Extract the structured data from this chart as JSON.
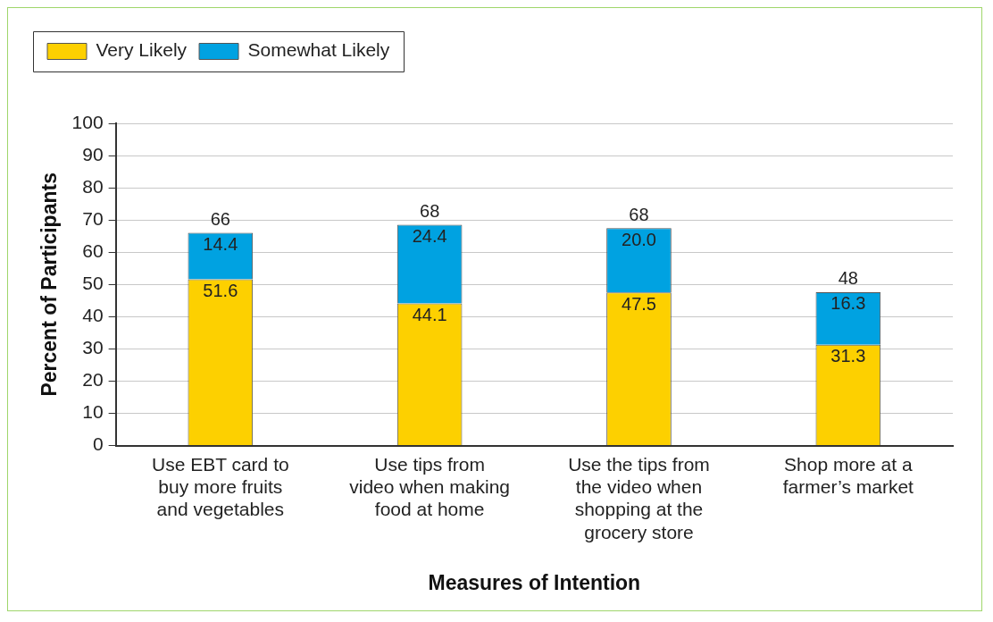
{
  "chart_data": {
    "type": "bar",
    "stacked": true,
    "xlabel": "Measures of Intention",
    "ylabel": "Percent of Participants",
    "categories": [
      "Use EBT card to buy more fruits and vegetables",
      "Use tips from video when making food at home",
      "Use the tips from the video when shopping at the grocery store",
      "Shop more at a farmer’s market"
    ],
    "series": [
      {
        "name": "Very Likely",
        "color": "#fdd000",
        "values": [
          51.6,
          44.1,
          47.5,
          31.3
        ],
        "value_labels": [
          "51.6",
          "44.1",
          "47.5",
          "31.3"
        ]
      },
      {
        "name": "Somewhat Likely",
        "color": "#00a2e1",
        "values": [
          14.4,
          24.4,
          20.0,
          16.3
        ],
        "value_labels": [
          "14.4",
          "24.4",
          "20.0",
          "16.3"
        ]
      }
    ],
    "totals": [
      "66",
      "68",
      "68",
      "48"
    ],
    "ylim": [
      0,
      100
    ],
    "yticks": [
      0,
      10,
      20,
      30,
      40,
      50,
      60,
      70,
      80,
      90,
      100
    ],
    "grid": "y",
    "legend": "top left"
  }
}
